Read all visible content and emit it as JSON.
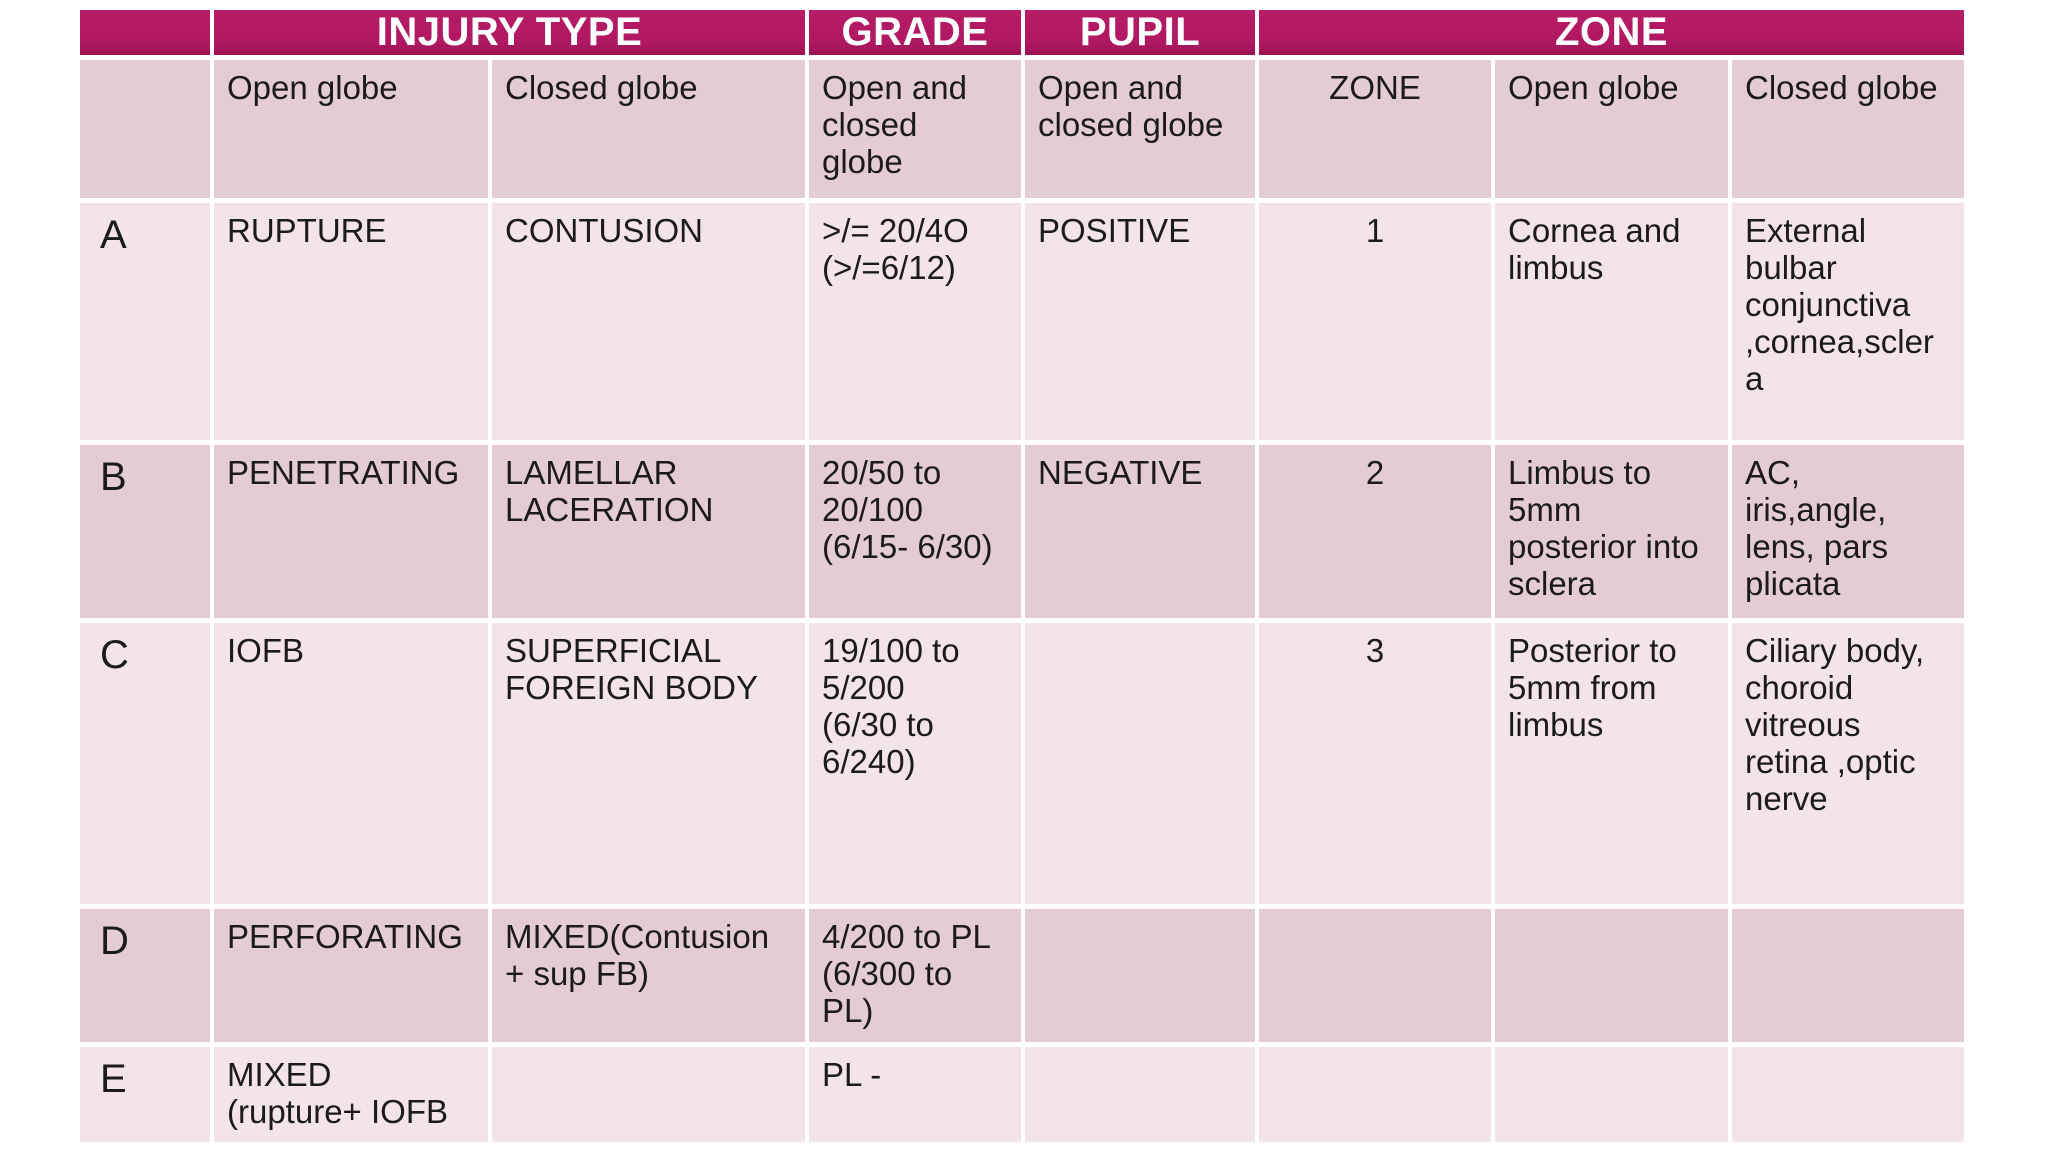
{
  "colors": {
    "header_magenta": "#b01861",
    "row_light_pink": "#f2e4ea",
    "row_medium_pink": "#e4ccd7",
    "grid_gap_white": "#ffffff",
    "text_black": "#1b1b1b",
    "header_text_white": "#ffffff"
  },
  "table": {
    "header": {
      "blank": "",
      "injury_type": "INJURY TYPE",
      "grade": "GRADE",
      "pupil": "PUPIL",
      "zone": "ZONE"
    },
    "sub": {
      "blank": "",
      "open_globe": "Open globe",
      "closed_globe": "Closed globe",
      "grade_scope": "Open and\nclosed\nglobe",
      "pupil_scope": "Open and\nclosed globe",
      "zone_label": "ZONE",
      "zone_open_globe": "Open globe",
      "zone_closed_globe": "Closed globe"
    },
    "rows": [
      {
        "letter": "A",
        "open_globe": "RUPTURE",
        "closed_globe": "CONTUSION",
        "grade": ">/= 20/4O\n(>/=6/12)",
        "pupil": "POSITIVE",
        "zone": "1",
        "zone_open_globe": "Cornea and\nlimbus",
        "zone_closed_globe": "External\nbulbar\nconjunctiva\n,cornea,scler\na"
      },
      {
        "letter": "B",
        "open_globe": "PENETRATING",
        "closed_globe": "LAMELLAR\nLACERATION",
        "grade": "20/50 to\n20/100\n(6/15- 6/30)",
        "pupil": "NEGATIVE",
        "zone": "2",
        "zone_open_globe": "Limbus to\n5mm\nposterior into\nsclera",
        "zone_closed_globe": "AC,\niris,angle,\nlens, pars\nplicata"
      },
      {
        "letter": "C",
        "open_globe": "IOFB",
        "closed_globe": "SUPERFICIAL\nFOREIGN BODY",
        "grade": "19/100 to\n5/200\n(6/30 to\n6/240)",
        "pupil": "",
        "zone": "3",
        "zone_open_globe": "Posterior to\n5mm from\nlimbus",
        "zone_closed_globe": "Ciliary body,\nchoroid\nvitreous\nretina ,optic\nnerve"
      },
      {
        "letter": "D",
        "open_globe": "PERFORATING",
        "closed_globe": "MIXED(Contusion\n+ sup FB)",
        "grade": "4/200 to PL\n(6/300 to\nPL)",
        "pupil": "",
        "zone": "",
        "zone_open_globe": "",
        "zone_closed_globe": ""
      },
      {
        "letter": "E",
        "open_globe": "MIXED\n(rupture+ IOFB",
        "closed_globe": "",
        "grade": "PL -",
        "pupil": "",
        "zone": "",
        "zone_open_globe": "",
        "zone_closed_globe": ""
      }
    ]
  }
}
